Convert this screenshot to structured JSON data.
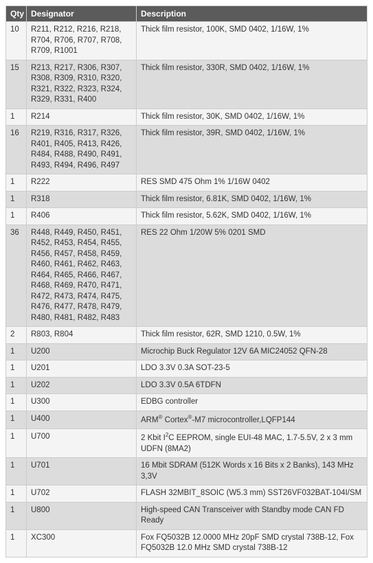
{
  "table": {
    "headers": {
      "qty": "Qty",
      "designator": "Designator",
      "description": "Description"
    },
    "rows": [
      {
        "qty": "10",
        "designator": "R211, R212, R216, R218, R704, R706, R707, R708, R709, R1001",
        "description": "Thick film resistor, 100K, SMD 0402, 1/16W, 1%"
      },
      {
        "qty": "15",
        "designator": "R213, R217, R306, R307, R308, R309, R310, R320, R321, R322, R323, R324, R329, R331, R400",
        "description": "Thick film resistor, 330R, SMD 0402, 1/16W, 1%"
      },
      {
        "qty": "1",
        "designator": "R214",
        "description": "Thick film resistor, 30K, SMD 0402, 1/16W, 1%"
      },
      {
        "qty": "16",
        "designator": "R219, R316, R317, R326, R401, R405, R413, R426, R484, R488, R490, R491, R493, R494, R496, R497",
        "description": "Thick film resistor, 39R, SMD 0402, 1/16W, 1%"
      },
      {
        "qty": "1",
        "designator": "R222",
        "description": "RES SMD 475 Ohm 1% 1/16W 0402"
      },
      {
        "qty": "1",
        "designator": "R318",
        "description": "Thick film resistor, 6.81K, SMD 0402, 1/16W, 1%"
      },
      {
        "qty": "1",
        "designator": "R406",
        "description": "Thick film resistor, 5.62K, SMD 0402, 1/16W, 1%"
      },
      {
        "qty": "36",
        "designator": "R448, R449, R450, R451, R452, R453, R454, R455, R456, R457, R458, R459, R460, R461, R462, R463, R464, R465, R466, R467, R468, R469, R470, R471, R472, R473, R474, R475, R476, R477, R478, R479, R480, R481, R482, R483",
        "description": "RES 22 Ohm 1/20W 5% 0201 SMD"
      },
      {
        "qty": "2",
        "designator": "R803, R804",
        "description": "Thick film resistor, 62R, SMD 1210, 0.5W, 1%"
      },
      {
        "qty": "1",
        "designator": "U200",
        "description": "Microchip Buck Regulator 12V 6A MIC24052 QFN-28"
      },
      {
        "qty": "1",
        "designator": "U201",
        "description": "LDO 3.3V 0.3A SOT-23-5"
      },
      {
        "qty": "1",
        "designator": "U202",
        "description": "LDO 3.3V 0.5A 6TDFN"
      },
      {
        "qty": "1",
        "designator": "U300",
        "description": "EDBG controller"
      },
      {
        "qty": "1",
        "designator": "U400",
        "description_html": "ARM<sup>®</sup> Cortex<sup>®</sup>-M7 microcontroller,LQFP144"
      },
      {
        "qty": "1",
        "designator": "U700",
        "description_html": "2 Kbit I<sup>2</sup>C EEPROM, single EUI-48 MAC, 1.7-5.5V, 2 x 3 mm UDFN (8MA2)"
      },
      {
        "qty": "1",
        "designator": "U701",
        "description": "16 Mbit SDRAM (512K Words x 16 Bits x 2 Banks), 143 MHz 3,3V"
      },
      {
        "qty": "1",
        "designator": "U702",
        "description": "FLASH 32MBIT_8SOIC (W5.3 mm) SST26VF032BAT-104I/SM"
      },
      {
        "qty": "1",
        "designator": "U800",
        "description": "High-speed CAN Transceiver with Standby mode CAN FD Ready"
      },
      {
        "qty": "1",
        "designator": "XC300",
        "description": "Fox FQ5032B 12.0000 MHz 20pF SMD crystal 738B-12, Fox FQ5032B 12.0 MHz SMD crystal 738B-12"
      }
    ]
  }
}
